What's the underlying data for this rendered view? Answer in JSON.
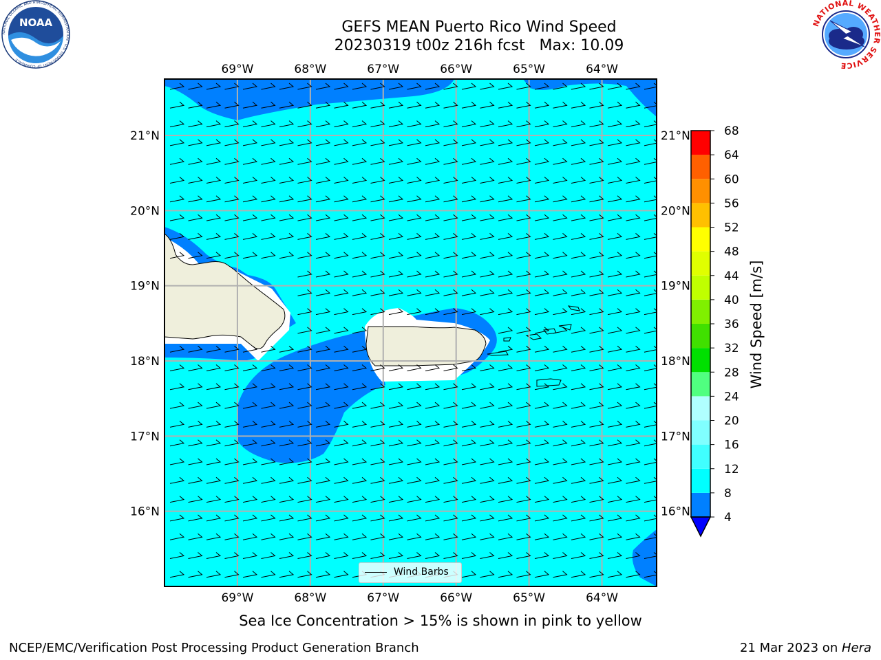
{
  "title": {
    "line1": "GEFS MEAN Puerto Rico Wind Speed",
    "line2": "20230319 t00z 216h fcst   Max: 10.09"
  },
  "logos": {
    "left": {
      "name": "noaa-logo",
      "text": "NOAA",
      "ring_text": "NATIONAL OCEANIC AND ATMOSPHERIC ADMINISTRATION · U.S. DEPARTMENT OF COMMERCE"
    },
    "right": {
      "name": "nws-logo",
      "ring_text": "NATIONAL WEATHER SERVICE"
    }
  },
  "map": {
    "lon_range": [
      -70.0,
      -63.25
    ],
    "lat_range": [
      15.0,
      21.75
    ],
    "lon_ticks": [
      "69°W",
      "68°W",
      "67°W",
      "66°W",
      "65°W",
      "64°W"
    ],
    "lat_ticks": [
      "21°N",
      "20°N",
      "19°N",
      "18°N",
      "17°N",
      "16°N"
    ],
    "gridlines": true,
    "colors": {
      "ocean_fill": "#00ffff",
      "low_wind_fill": "#0080ff",
      "land": "#efefdc",
      "coast": "#000000",
      "grid": "#b0b0b0"
    }
  },
  "legend": {
    "label": "Wind Barbs",
    "placement": "lower center"
  },
  "colorbar": {
    "label": "Wind Speed [m/s]",
    "ticks": [
      "68",
      "64",
      "60",
      "56",
      "52",
      "48",
      "44",
      "40",
      "36",
      "32",
      "28",
      "24",
      "20",
      "16",
      "12",
      "8",
      "4"
    ],
    "colors": [
      "#0080ff",
      "#00ffff",
      "#40ffff",
      "#80ffff",
      "#b0ffff",
      "#50ff80",
      "#00e000",
      "#40e000",
      "#80f000",
      "#c0ff00",
      "#e0ff00",
      "#ffff00",
      "#ffc000",
      "#ff9000",
      "#ff6000",
      "#ff3000",
      "#ff0000"
    ],
    "under_color": "#0000ff"
  },
  "subnote": "Sea Ice Concentration > 15% is shown in pink to yellow",
  "footer": {
    "left": "NCEP/EMC/Verification Post Processing Product Generation Branch",
    "right_prefix": "21 Mar 2023 on ",
    "right_host": "Hera"
  }
}
